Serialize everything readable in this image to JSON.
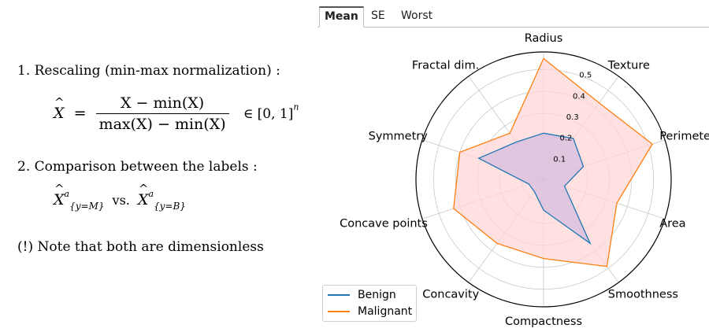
{
  "explanation": {
    "step1_label": "1. Rescaling (min-max normalization) :",
    "formula_lhs": "X",
    "formula_num": "X − min(X)",
    "formula_den": "max(X) − min(X)",
    "formula_range": "∈ [0, 1]",
    "formula_range_sup": "n",
    "step2_label": "2. Comparison between the labels :",
    "compare_symbol": "X",
    "compare_sup": "a",
    "compare_sub_m": "{y=M}",
    "compare_vs": "vs.",
    "compare_sub_b": "{y=B}",
    "note": "(!) Note that both are dimensionless"
  },
  "tabs": [
    {
      "label": "Mean",
      "active": true
    },
    {
      "label": "SE",
      "active": false
    },
    {
      "label": "Worst",
      "active": false
    }
  ],
  "chart_data": {
    "type": "radar",
    "categories": [
      "Radius",
      "Texture",
      "Perimeter",
      "Area",
      "Smoothness",
      "Compactness",
      "Concavity",
      "Concave points",
      "Symmetry",
      "Fractal dim."
    ],
    "series": [
      {
        "name": "Benign",
        "color": "#1f77b4",
        "values": [
          0.21,
          0.23,
          0.19,
          0.1,
          0.36,
          0.14,
          0.07,
          0.07,
          0.31,
          0.21
        ]
      },
      {
        "name": "Malignant",
        "color": "#ff7f0e",
        "fill": "#ffd7d7",
        "values": [
          0.55,
          0.43,
          0.52,
          0.35,
          0.49,
          0.36,
          0.36,
          0.43,
          0.4,
          0.26
        ]
      }
    ],
    "rticks": [
      0.1,
      0.2,
      0.3,
      0.4,
      0.5
    ],
    "rtick_labels": [
      "0.1",
      "0.2",
      "0.3",
      "0.4",
      "0.5"
    ],
    "rmax": 0.58,
    "grid": true,
    "legend_position": "bottom-left"
  }
}
